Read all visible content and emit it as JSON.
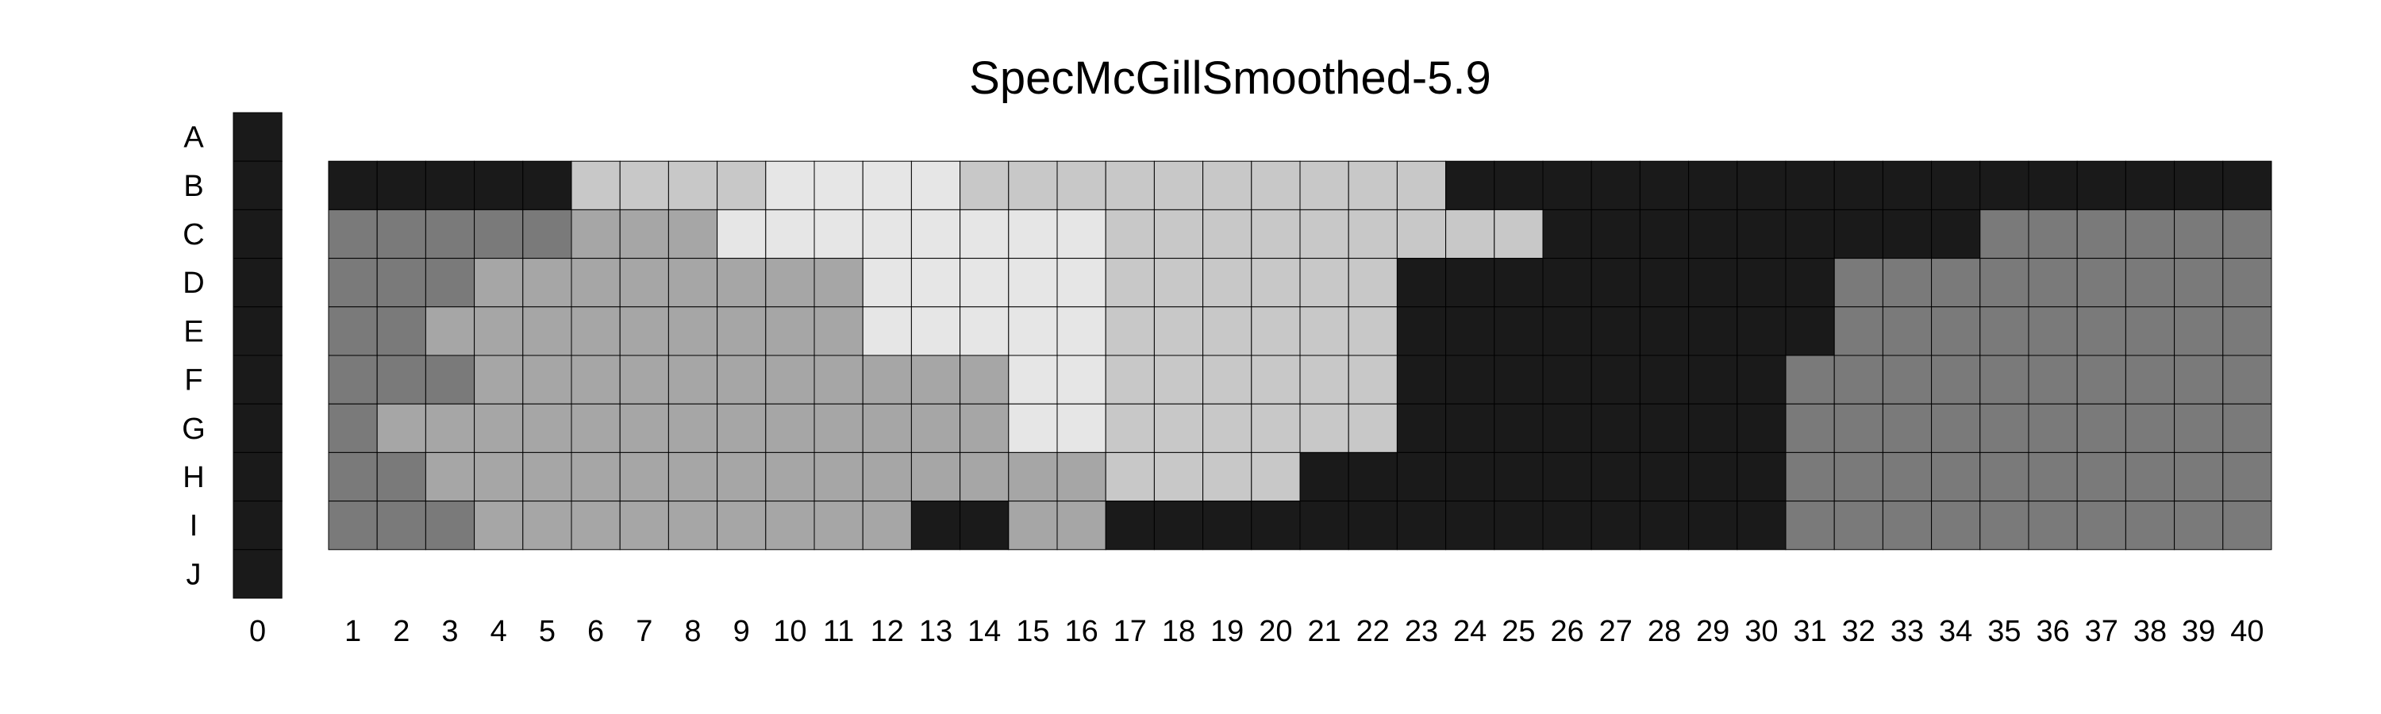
{
  "chart_data": {
    "type": "heatmap",
    "title": "SpecMcGillSmoothed-5.9",
    "row_labels": [
      "A",
      "B",
      "C",
      "D",
      "E",
      "F",
      "G",
      "H",
      "I",
      "J"
    ],
    "reference_column": {
      "label": "0",
      "rows": [
        "A",
        "B",
        "C",
        "D",
        "E",
        "F",
        "G",
        "H",
        "I",
        "J"
      ],
      "level": "K"
    },
    "column_labels": [
      "1",
      "2",
      "3",
      "4",
      "5",
      "6",
      "7",
      "8",
      "9",
      "10",
      "11",
      "12",
      "13",
      "14",
      "15",
      "16",
      "17",
      "18",
      "19",
      "20",
      "21",
      "22",
      "23",
      "24",
      "25",
      "26",
      "27",
      "28",
      "29",
      "30",
      "31",
      "32",
      "33",
      "34",
      "35",
      "36",
      "37",
      "38",
      "39",
      "40"
    ],
    "grid_rows": [
      "B",
      "C",
      "D",
      "E",
      "F",
      "G",
      "H",
      "I"
    ],
    "level_colors": {
      "K": "#1a1a1a",
      "1": "#7a7a7a",
      "2": "#a6a6a6",
      "3": "#c8c8c8",
      "4": "#e6e6e6"
    },
    "cells": [
      [
        "K",
        "K",
        "K",
        "K",
        "K",
        "3",
        "3",
        "3",
        "3",
        "4",
        "4",
        "4",
        "4",
        "3",
        "3",
        "3",
        "3",
        "3",
        "3",
        "3",
        "3",
        "3",
        "3",
        "K",
        "K",
        "K",
        "K",
        "K",
        "K",
        "K",
        "K",
        "K",
        "K",
        "K",
        "K",
        "K",
        "K",
        "K",
        "K",
        "K"
      ],
      [
        "1",
        "1",
        "1",
        "1",
        "1",
        "2",
        "2",
        "2",
        "4",
        "4",
        "4",
        "4",
        "4",
        "4",
        "4",
        "4",
        "3",
        "3",
        "3",
        "3",
        "3",
        "3",
        "3",
        "3",
        "3",
        "K",
        "K",
        "K",
        "K",
        "K",
        "K",
        "K",
        "K",
        "K",
        "1",
        "1",
        "1",
        "1",
        "1",
        "1"
      ],
      [
        "1",
        "1",
        "1",
        "2",
        "2",
        "2",
        "2",
        "2",
        "2",
        "2",
        "2",
        "4",
        "4",
        "4",
        "4",
        "4",
        "3",
        "3",
        "3",
        "3",
        "3",
        "3",
        "K",
        "K",
        "K",
        "K",
        "K",
        "K",
        "K",
        "K",
        "K",
        "1",
        "1",
        "1",
        "1",
        "1",
        "1",
        "1",
        "1",
        "1"
      ],
      [
        "1",
        "1",
        "2",
        "2",
        "2",
        "2",
        "2",
        "2",
        "2",
        "2",
        "2",
        "4",
        "4",
        "4",
        "4",
        "4",
        "3",
        "3",
        "3",
        "3",
        "3",
        "3",
        "K",
        "K",
        "K",
        "K",
        "K",
        "K",
        "K",
        "K",
        "K",
        "1",
        "1",
        "1",
        "1",
        "1",
        "1",
        "1",
        "1",
        "1"
      ],
      [
        "1",
        "1",
        "1",
        "2",
        "2",
        "2",
        "2",
        "2",
        "2",
        "2",
        "2",
        "2",
        "2",
        "2",
        "4",
        "4",
        "3",
        "3",
        "3",
        "3",
        "3",
        "3",
        "K",
        "K",
        "K",
        "K",
        "K",
        "K",
        "K",
        "K",
        "1",
        "1",
        "1",
        "1",
        "1",
        "1",
        "1",
        "1",
        "1",
        "1"
      ],
      [
        "1",
        "2",
        "2",
        "2",
        "2",
        "2",
        "2",
        "2",
        "2",
        "2",
        "2",
        "2",
        "2",
        "2",
        "4",
        "4",
        "3",
        "3",
        "3",
        "3",
        "3",
        "3",
        "K",
        "K",
        "K",
        "K",
        "K",
        "K",
        "K",
        "K",
        "1",
        "1",
        "1",
        "1",
        "1",
        "1",
        "1",
        "1",
        "1",
        "1"
      ],
      [
        "1",
        "1",
        "2",
        "2",
        "2",
        "2",
        "2",
        "2",
        "2",
        "2",
        "2",
        "2",
        "2",
        "2",
        "2",
        "2",
        "3",
        "3",
        "3",
        "3",
        "K",
        "K",
        "K",
        "K",
        "K",
        "K",
        "K",
        "K",
        "K",
        "K",
        "1",
        "1",
        "1",
        "1",
        "1",
        "1",
        "1",
        "1",
        "1",
        "1"
      ],
      [
        "1",
        "1",
        "1",
        "2",
        "2",
        "2",
        "2",
        "2",
        "2",
        "2",
        "2",
        "2",
        "K",
        "K",
        "2",
        "2",
        "K",
        "K",
        "K",
        "K",
        "K",
        "K",
        "K",
        "K",
        "K",
        "K",
        "K",
        "K",
        "K",
        "K",
        "1",
        "1",
        "1",
        "1",
        "1",
        "1",
        "1",
        "1",
        "1",
        "1"
      ]
    ]
  }
}
